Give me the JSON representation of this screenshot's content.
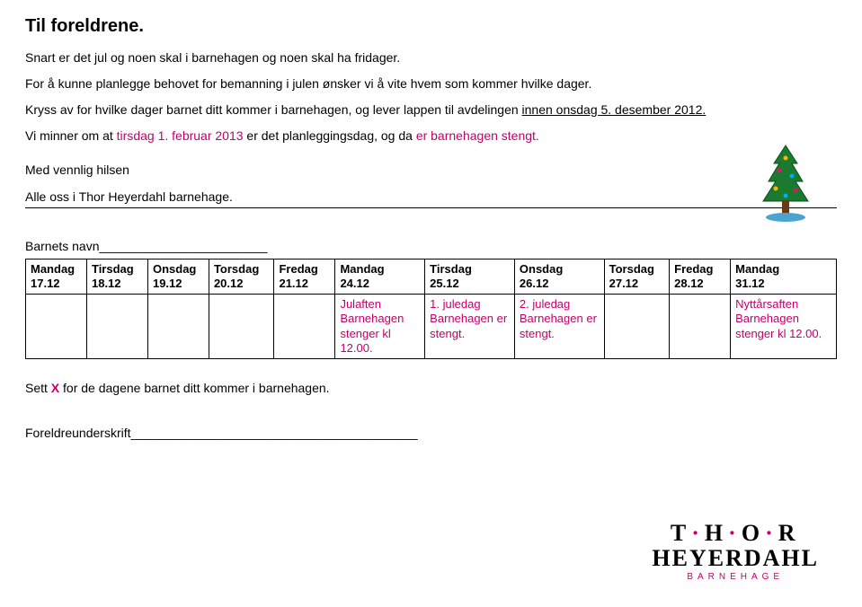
{
  "title": "Til foreldrene.",
  "para1": "Snart er det jul og noen skal i barnehagen og noen skal ha fridager.",
  "para2": "For å kunne planlegge behovet for bemanning i julen ønsker vi å vite hvem som kommer hvilke dager.",
  "para3_a": "Kryss av for hvilke dager barnet ditt kommer i barnehagen, og lever lappen til avdelingen ",
  "para3_b": "innen onsdag 5. desember 2012.",
  "para4_a": "Vi minner om at ",
  "para4_b": "tirsdag 1. februar 2013",
  "para4_c": " er det planleggingsdag, og da ",
  "para4_d": "er barnehagen stengt.",
  "signoff": "Med vennlig hilsen",
  "divider_label": "Alle oss i Thor Heyerdahl barnehage.",
  "namefield": "Barnets navn________________________",
  "days": [
    {
      "name": "Mandag",
      "date": "17.12",
      "note": ""
    },
    {
      "name": "Tirsdag",
      "date": "18.12",
      "note": ""
    },
    {
      "name": "Onsdag",
      "date": "19.12",
      "note": ""
    },
    {
      "name": "Torsdag",
      "date": "20.12",
      "note": ""
    },
    {
      "name": "Fredag",
      "date": "21.12",
      "note": ""
    },
    {
      "name": "Mandag",
      "date": "24.12",
      "note": "Julaften Barnehagen stenger kl 12.00."
    },
    {
      "name": "Tirsdag",
      "date": "25.12",
      "note": "1. juledag Barnehagen er stengt."
    },
    {
      "name": "Onsdag",
      "date": "26.12",
      "note": "2. juledag Barnehagen er stengt."
    },
    {
      "name": "Torsdag",
      "date": "27.12",
      "note": ""
    },
    {
      "name": "Fredag",
      "date": "28.12",
      "note": ""
    },
    {
      "name": "Mandag",
      "date": "31.12",
      "note": "Nyttårsaften Barnehagen stenger kl 12.00."
    }
  ],
  "footer1_a": "Sett ",
  "footer1_x": "X",
  "footer1_b": " for de dagene barnet ditt kommer i barnehagen.",
  "footer2": "Foreldreunderskrift_________________________________________",
  "logo": {
    "line1": "THOR",
    "line2": "HEYERDAHL",
    "sub": "BARNEHAGE"
  },
  "colors": {
    "magenta": "#c2006b",
    "black": "#000000",
    "bg": "#ffffff"
  },
  "col_widths_pct": [
    7.5,
    7.5,
    7.5,
    8,
    7.5,
    11,
    11,
    11,
    8,
    7.5,
    13
  ]
}
